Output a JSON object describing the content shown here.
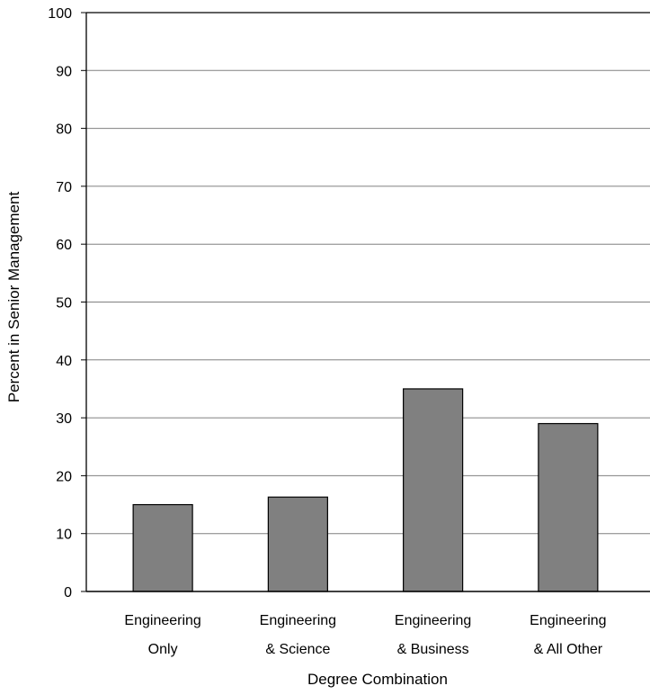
{
  "chart_data": {
    "type": "bar",
    "title": "",
    "xlabel": "Degree Combination",
    "ylabel": "Percent in Senior Management",
    "ylim": [
      0,
      100
    ],
    "yticks": [
      0,
      10,
      20,
      30,
      40,
      50,
      60,
      70,
      80,
      90,
      100
    ],
    "grid": true,
    "categories": [
      [
        "Engineering",
        "Only"
      ],
      [
        "Engineering",
        "& Science"
      ],
      [
        "Engineering",
        "& Business"
      ],
      [
        "Engineering",
        "& All Other"
      ]
    ],
    "values": [
      15,
      16.3,
      35,
      29
    ],
    "colors": {
      "bar": "#808080",
      "bar_stroke": "#000000",
      "grid": "#808080",
      "axis": "#000000"
    }
  }
}
